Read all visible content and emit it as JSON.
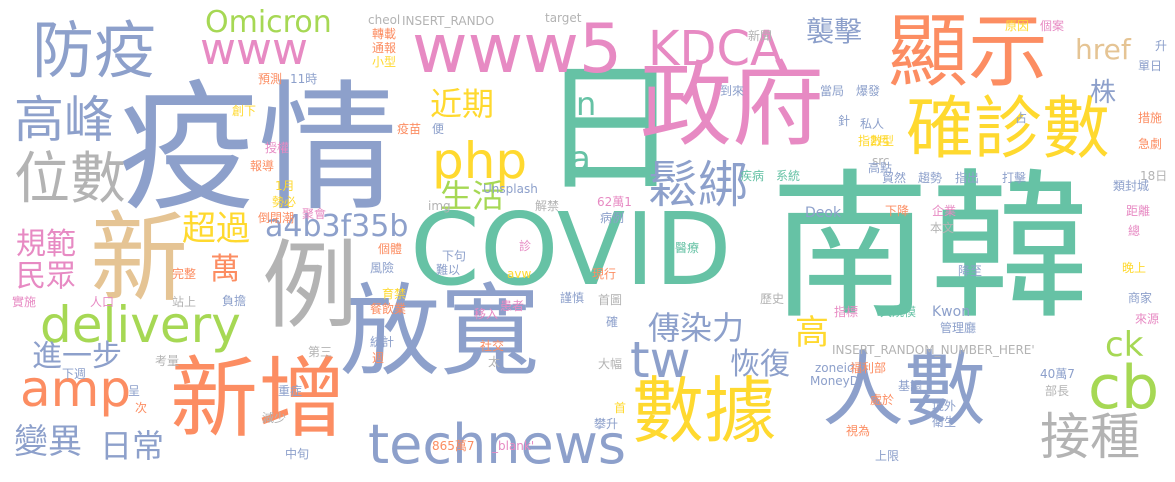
{
  "palette": {
    "teal": "#66c2a5",
    "orange": "#fc8d62",
    "blue": "#8da0cb",
    "pink": "#e78ac3",
    "green": "#a6d854",
    "yellow": "#ffd92f",
    "tan": "#e5c494",
    "gray": "#b3b3b3"
  },
  "words": [
    {
      "text": "疫情",
      "color": "#8da0cb"
    },
    {
      "text": "南韓",
      "color": "#66c2a5"
    },
    {
      "text": "COVID",
      "color": "#66c2a5"
    },
    {
      "text": "日",
      "color": "#66c2a5"
    },
    {
      "text": "政府",
      "color": "#e78ac3"
    },
    {
      "text": "放寬",
      "color": "#8da0cb"
    },
    {
      "text": "新增",
      "color": "#fc8d62"
    },
    {
      "text": "人數",
      "color": "#8da0cb"
    },
    {
      "text": "數據",
      "color": "#ffd92f"
    },
    {
      "text": "例",
      "color": "#b3b3b3"
    },
    {
      "text": "新",
      "color": "#e5c494"
    },
    {
      "text": "顯示",
      "color": "#fc8d62"
    },
    {
      "text": "www5",
      "color": "#e78ac3"
    },
    {
      "text": "確診數",
      "color": "#ffd92f"
    },
    {
      "text": "防疫",
      "color": "#8da0cb"
    },
    {
      "text": "technews",
      "color": "#8da0cb"
    },
    {
      "text": "KDCA",
      "color": "#e78ac3"
    },
    {
      "text": "高峰",
      "color": "#8da0cb"
    },
    {
      "text": "位數",
      "color": "#b3b3b3"
    },
    {
      "text": "www",
      "color": "#e78ac3"
    },
    {
      "text": "php",
      "color": "#ffd92f"
    },
    {
      "text": "delivery",
      "color": "#a6d854"
    },
    {
      "text": "amp",
      "color": "#fc8d62"
    },
    {
      "text": "cb",
      "color": "#a6d854"
    },
    {
      "text": "tw",
      "color": "#8da0cb"
    },
    {
      "text": "接種",
      "color": "#b3b3b3"
    },
    {
      "text": "鬆綁",
      "color": "#8da0cb"
    },
    {
      "text": "Omicron",
      "color": "#a6d854"
    },
    {
      "text": "n",
      "color": "#66c2a5"
    },
    {
      "text": "a",
      "color": "#66c2a5"
    },
    {
      "text": "a4b3f35b",
      "color": "#8da0cb"
    },
    {
      "text": "傳染力",
      "color": "#8da0cb"
    },
    {
      "text": "恢復",
      "color": "#8da0cb"
    },
    {
      "text": "高",
      "color": "#ffd92f"
    },
    {
      "text": "ck",
      "color": "#a6d854"
    },
    {
      "text": "變異",
      "color": "#8da0cb"
    },
    {
      "text": "日常",
      "color": "#8da0cb"
    },
    {
      "text": "進一步",
      "color": "#8da0cb"
    },
    {
      "text": "規範",
      "color": "#e78ac3"
    },
    {
      "text": "民眾",
      "color": "#e78ac3"
    },
    {
      "text": "超過",
      "color": "#ffd92f"
    },
    {
      "text": "萬",
      "color": "#fc8d62"
    },
    {
      "text": "近期",
      "color": "#ffd92f"
    },
    {
      "text": "生活",
      "color": "#a6d854"
    },
    {
      "text": "襲擊",
      "color": "#8da0cb"
    },
    {
      "text": "href",
      "color": "#e5c494"
    },
    {
      "text": "株",
      "color": "#8da0cb"
    },
    {
      "text": "_blank'",
      "color": "#e78ac3"
    },
    {
      "text": "INSERT_RANDOM_NUMBER_HERE'",
      "color": "#b3b3b3"
    },
    {
      "text": "INSERT_RANDO",
      "color": "#b3b3b3"
    },
    {
      "text": "target",
      "color": "#b3b3b3"
    },
    {
      "text": "cheol",
      "color": "#b3b3b3"
    },
    {
      "text": "Unsplash",
      "color": "#8da0cb"
    },
    {
      "text": "Deok",
      "color": "#8da0cb"
    },
    {
      "text": "Kwon",
      "color": "#8da0cb"
    },
    {
      "text": "MoneyDJ",
      "color": "#8da0cb"
    },
    {
      "text": "zoneid",
      "color": "#8da0cb"
    },
    {
      "text": "src",
      "color": "#b3b3b3"
    },
    {
      "text": "img",
      "color": "#b3b3b3"
    },
    {
      "text": "avw",
      "color": "#ffd92f"
    },
    {
      "text": "62萬1",
      "color": "#e78ac3"
    },
    {
      "text": "865萬7",
      "color": "#fc8d62"
    },
    {
      "text": "40萬7",
      "color": "#8da0cb"
    },
    {
      "text": "11時",
      "color": "#8da0cb"
    },
    {
      "text": "18日",
      "color": "#b3b3b3"
    },
    {
      "text": "1月",
      "color": "#ffd92f"
    },
    {
      "text": "2月",
      "color": "#ffd92f"
    },
    {
      "text": "轉載",
      "color": "#fc8d62"
    },
    {
      "text": "通報",
      "color": "#fc8d62"
    },
    {
      "text": "小型",
      "color": "#ffd92f"
    },
    {
      "text": "預測",
      "color": "#fc8d62"
    },
    {
      "text": "新聞",
      "color": "#b3b3b3"
    },
    {
      "text": "到來",
      "color": "#8da0cb"
    },
    {
      "text": "當局",
      "color": "#8da0cb"
    },
    {
      "text": "爆發",
      "color": "#8da0cb"
    },
    {
      "text": "原因",
      "color": "#ffd92f"
    },
    {
      "text": "個案",
      "color": "#e78ac3"
    },
    {
      "text": "單日",
      "color": "#8da0cb"
    },
    {
      "text": "升",
      "color": "#8da0cb"
    },
    {
      "text": "創下",
      "color": "#ffd92f"
    },
    {
      "text": "疫苗",
      "color": "#fc8d62"
    },
    {
      "text": "便",
      "color": "#8da0cb"
    },
    {
      "text": "針",
      "color": "#8da0cb"
    },
    {
      "text": "私人",
      "color": "#8da0cb"
    },
    {
      "text": "占",
      "color": "#8da0cb"
    },
    {
      "text": "措施",
      "color": "#fc8d62"
    },
    {
      "text": "指數型",
      "color": "#ffd92f"
    },
    {
      "text": "急劇",
      "color": "#fc8d62"
    },
    {
      "text": "授權",
      "color": "#e78ac3"
    },
    {
      "text": "報導",
      "color": "#fc8d62"
    },
    {
      "text": "勢必",
      "color": "#ffd92f"
    },
    {
      "text": "倒閉潮",
      "color": "#fc8d62"
    },
    {
      "text": "聚會",
      "color": "#e78ac3"
    },
    {
      "text": "解禁",
      "color": "#b3b3b3"
    },
    {
      "text": "病例",
      "color": "#8da0cb"
    },
    {
      "text": "疾病",
      "color": "#66c2a5"
    },
    {
      "text": "系統",
      "color": "#66c2a5"
    },
    {
      "text": "高點",
      "color": "#8da0cb"
    },
    {
      "text": "貿然",
      "color": "#8da0cb"
    },
    {
      "text": "趨勢",
      "color": "#8da0cb"
    },
    {
      "text": "指出",
      "color": "#8da0cb"
    },
    {
      "text": "打擊",
      "color": "#8da0cb"
    },
    {
      "text": "類封城",
      "color": "#8da0cb"
    },
    {
      "text": "企業",
      "color": "#e78ac3"
    },
    {
      "text": "下降",
      "color": "#fc8d62"
    },
    {
      "text": "距離",
      "color": "#e78ac3"
    },
    {
      "text": "總",
      "color": "#e78ac3"
    },
    {
      "text": "本文",
      "color": "#b3b3b3"
    },
    {
      "text": "個體",
      "color": "#fc8d62"
    },
    {
      "text": "診",
      "color": "#e78ac3"
    },
    {
      "text": "醫療",
      "color": "#66c2a5"
    },
    {
      "text": "風險",
      "color": "#8da0cb"
    },
    {
      "text": "下句",
      "color": "#8da0cb"
    },
    {
      "text": "難以",
      "color": "#8da0cb"
    },
    {
      "text": "降至",
      "color": "#8da0cb"
    },
    {
      "text": "晚上",
      "color": "#ffd92f"
    },
    {
      "text": "完整",
      "color": "#fc8d62"
    },
    {
      "text": "負擔",
      "color": "#8da0cb"
    },
    {
      "text": "現行",
      "color": "#fc8d62"
    },
    {
      "text": "首圖",
      "color": "#b3b3b3"
    },
    {
      "text": "商家",
      "color": "#8da0cb"
    },
    {
      "text": "實施",
      "color": "#e78ac3"
    },
    {
      "text": "人口",
      "color": "#e78ac3"
    },
    {
      "text": "站上",
      "color": "#b3b3b3"
    },
    {
      "text": "患者",
      "color": "#e78ac3"
    },
    {
      "text": "歷史",
      "color": "#b3b3b3"
    },
    {
      "text": "育禁",
      "color": "#ffd92f"
    },
    {
      "text": "謹慎",
      "color": "#8da0cb"
    },
    {
      "text": "指標",
      "color": "#e78ac3"
    },
    {
      "text": "大規模",
      "color": "#66c2a5"
    },
    {
      "text": "來源",
      "color": "#e78ac3"
    },
    {
      "text": "餐飲業",
      "color": "#fc8d62"
    },
    {
      "text": "移入",
      "color": "#e78ac3"
    },
    {
      "text": "確",
      "color": "#8da0cb"
    },
    {
      "text": "管理廳",
      "color": "#8da0cb"
    },
    {
      "text": "統計",
      "color": "#8da0cb"
    },
    {
      "text": "第三",
      "color": "#b3b3b3"
    },
    {
      "text": "社交",
      "color": "#fc8d62"
    },
    {
      "text": "週",
      "color": "#fc8d62"
    },
    {
      "text": "考量",
      "color": "#b3b3b3"
    },
    {
      "text": "下週",
      "color": "#8da0cb"
    },
    {
      "text": "大幅",
      "color": "#b3b3b3"
    },
    {
      "text": "太",
      "color": "#b3b3b3"
    },
    {
      "text": "福利部",
      "color": "#fc8d62"
    },
    {
      "text": "呈",
      "color": "#8da0cb"
    },
    {
      "text": "重症",
      "color": "#8da0cb"
    },
    {
      "text": "次",
      "color": "#fc8d62"
    },
    {
      "text": "首",
      "color": "#ffd92f"
    },
    {
      "text": "攀升",
      "color": "#8da0cb"
    },
    {
      "text": "基調",
      "color": "#8da0cb"
    },
    {
      "text": "境外",
      "color": "#8da0cb"
    },
    {
      "text": "衛生",
      "color": "#8da0cb"
    },
    {
      "text": "處於",
      "color": "#fc8d62"
    },
    {
      "text": "部長",
      "color": "#b3b3b3"
    },
    {
      "text": "減少",
      "color": "#b3b3b3"
    },
    {
      "text": "視為",
      "color": "#fc8d62"
    },
    {
      "text": "中旬",
      "color": "#8da0cb"
    },
    {
      "text": "上限",
      "color": "#8da0cb"
    }
  ]
}
